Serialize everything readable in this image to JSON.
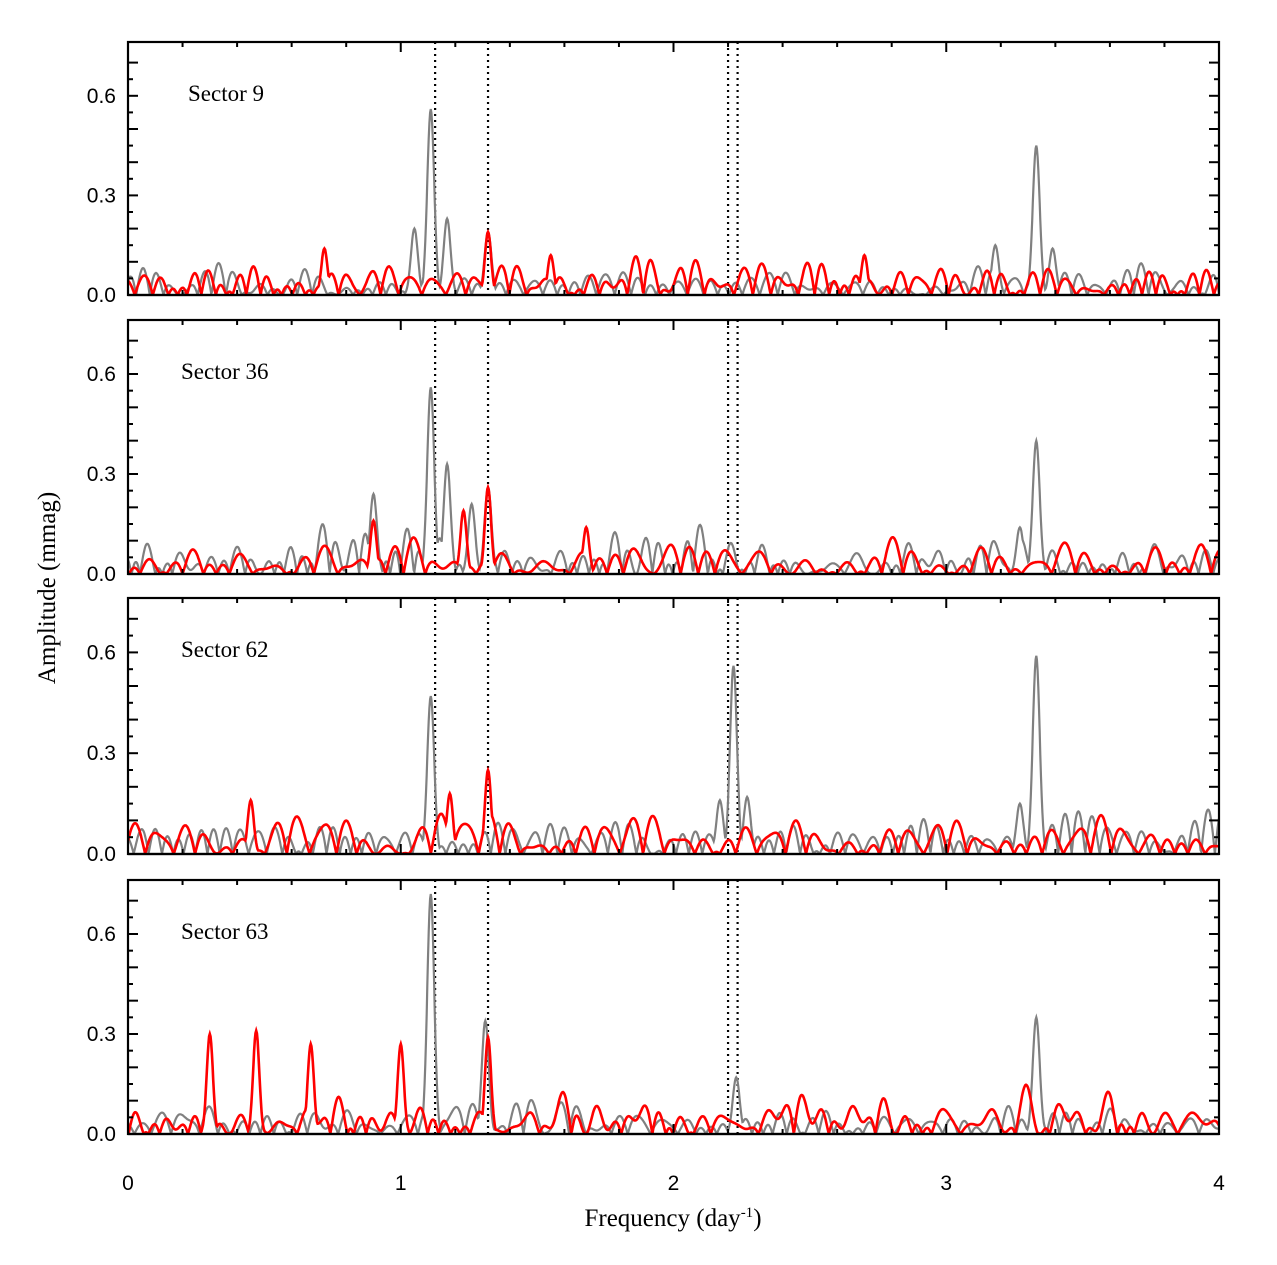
{
  "chart_data": {
    "type": "line",
    "xlabel": "Frequency (day",
    "xlabel_sup": "-1",
    "xlabel_close": ")",
    "ylabel": "Amplitude (mmag)",
    "xlim": [
      0,
      4
    ],
    "ylim": [
      0,
      0.75
    ],
    "xticks": [
      "0",
      "1",
      "2",
      "3",
      "4"
    ],
    "yticks": [
      "0.0",
      "0.3",
      "0.6"
    ],
    "reference_lines": [
      1.126,
      1.32,
      2.2,
      2.235
    ],
    "colors": {
      "original": "#808080",
      "prewhitened": "#ff0000",
      "reference": "#000000"
    },
    "series_roles": [
      "original",
      "prewhitened"
    ],
    "panels": [
      {
        "label": "Sector 9",
        "peaks_original": [
          [
            1.05,
            0.2
          ],
          [
            1.11,
            0.56
          ],
          [
            1.17,
            0.23
          ],
          [
            1.32,
            0.19
          ],
          [
            3.18,
            0.15
          ],
          [
            3.33,
            0.45
          ],
          [
            3.39,
            0.14
          ]
        ],
        "peaks_prewhitened": [
          [
            0.72,
            0.14
          ],
          [
            1.32,
            0.19
          ],
          [
            1.55,
            0.12
          ],
          [
            2.7,
            0.12
          ]
        ]
      },
      {
        "label": "Sector 36",
        "peaks_original": [
          [
            0.9,
            0.24
          ],
          [
            1.11,
            0.56
          ],
          [
            1.17,
            0.33
          ],
          [
            1.26,
            0.21
          ],
          [
            1.32,
            0.26
          ],
          [
            3.33,
            0.4
          ],
          [
            3.27,
            0.14
          ]
        ],
        "peaks_prewhitened": [
          [
            0.9,
            0.16
          ],
          [
            1.32,
            0.26
          ],
          [
            1.23,
            0.19
          ],
          [
            1.68,
            0.14
          ]
        ]
      },
      {
        "label": "Sector 62",
        "peaks_original": [
          [
            1.11,
            0.47
          ],
          [
            2.22,
            0.56
          ],
          [
            2.17,
            0.16
          ],
          [
            2.27,
            0.17
          ],
          [
            3.33,
            0.59
          ],
          [
            3.27,
            0.15
          ]
        ],
        "peaks_prewhitened": [
          [
            0.45,
            0.16
          ],
          [
            1.18,
            0.18
          ],
          [
            1.32,
            0.25
          ]
        ]
      },
      {
        "label": "Sector 63",
        "peaks_original": [
          [
            1.11,
            0.72
          ],
          [
            1.31,
            0.34
          ],
          [
            2.23,
            0.17
          ],
          [
            3.33,
            0.35
          ]
        ],
        "peaks_prewhitened": [
          [
            0.3,
            0.3
          ],
          [
            0.47,
            0.31
          ],
          [
            0.67,
            0.27
          ],
          [
            1.0,
            0.27
          ],
          [
            1.32,
            0.29
          ]
        ]
      }
    ]
  }
}
